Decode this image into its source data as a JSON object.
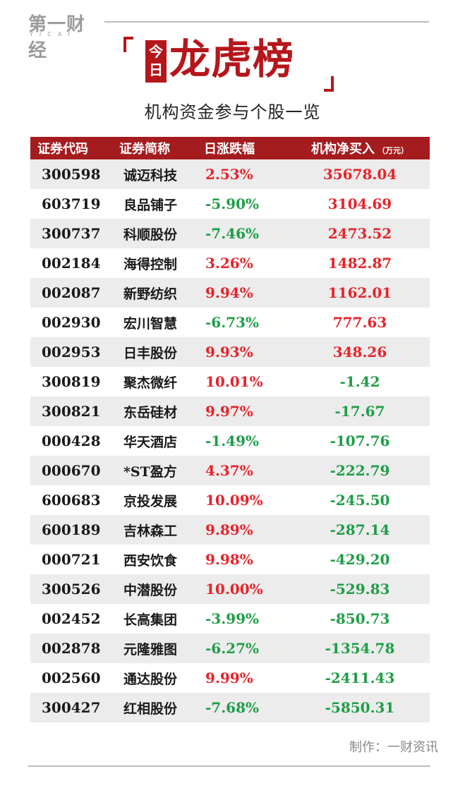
{
  "logo": {
    "main": "第一财经",
    "sub": "YICAI"
  },
  "title": {
    "badge": [
      "今",
      "日"
    ],
    "main": "龙虎榜",
    "subtitle": "机构资金参与个股一览"
  },
  "colors": {
    "accent": "#b5161b",
    "header_bg": "#a51c1f",
    "up": "#e8232a",
    "down": "#1e9e47",
    "stripe": "#ececec"
  },
  "table": {
    "headers": {
      "code": "证券代码",
      "name": "证券简称",
      "change": "日涨跌幅",
      "net": "机构净买入",
      "unit": "（万元）"
    },
    "rows": [
      {
        "code": "300598",
        "name": "诚迈科技",
        "change": "2.53%",
        "net": "35678.04",
        "change_dir": "up",
        "net_dir": "up"
      },
      {
        "code": "603719",
        "name": "良品铺子",
        "change": "-5.90%",
        "net": "3104.69",
        "change_dir": "down",
        "net_dir": "up"
      },
      {
        "code": "300737",
        "name": "科顺股份",
        "change": "-7.46%",
        "net": "2473.52",
        "change_dir": "down",
        "net_dir": "up"
      },
      {
        "code": "002184",
        "name": "海得控制",
        "change": "3.26%",
        "net": "1482.87",
        "change_dir": "up",
        "net_dir": "up"
      },
      {
        "code": "002087",
        "name": "新野纺织",
        "change": "9.94%",
        "net": "1162.01",
        "change_dir": "up",
        "net_dir": "up"
      },
      {
        "code": "002930",
        "name": "宏川智慧",
        "change": "-6.73%",
        "net": "777.63",
        "change_dir": "down",
        "net_dir": "up"
      },
      {
        "code": "002953",
        "name": "日丰股份",
        "change": "9.93%",
        "net": "348.26",
        "change_dir": "up",
        "net_dir": "up"
      },
      {
        "code": "300819",
        "name": "聚杰微纤",
        "change": "10.01%",
        "net": "-1.42",
        "change_dir": "up",
        "net_dir": "down"
      },
      {
        "code": "300821",
        "name": "东岳硅材",
        "change": "9.97%",
        "net": "-17.67",
        "change_dir": "up",
        "net_dir": "down"
      },
      {
        "code": "000428",
        "name": "华天酒店",
        "change": "-1.49%",
        "net": "-107.76",
        "change_dir": "down",
        "net_dir": "down"
      },
      {
        "code": "000670",
        "name": "*ST盈方",
        "change": "4.37%",
        "net": "-222.79",
        "change_dir": "up",
        "net_dir": "down"
      },
      {
        "code": "600683",
        "name": "京投发展",
        "change": "10.09%",
        "net": "-245.50",
        "change_dir": "up",
        "net_dir": "down"
      },
      {
        "code": "600189",
        "name": "吉林森工",
        "change": "9.89%",
        "net": "-287.14",
        "change_dir": "up",
        "net_dir": "down"
      },
      {
        "code": "000721",
        "name": "西安饮食",
        "change": "9.98%",
        "net": "-429.20",
        "change_dir": "up",
        "net_dir": "down"
      },
      {
        "code": "300526",
        "name": "中潜股份",
        "change": "10.00%",
        "net": "-529.83",
        "change_dir": "up",
        "net_dir": "down"
      },
      {
        "code": "002452",
        "name": "长高集团",
        "change": "-3.99%",
        "net": "-850.73",
        "change_dir": "down",
        "net_dir": "down"
      },
      {
        "code": "002878",
        "name": "元隆雅图",
        "change": "-6.27%",
        "net": "-1354.78",
        "change_dir": "down",
        "net_dir": "down"
      },
      {
        "code": "002560",
        "name": "通达股份",
        "change": "9.99%",
        "net": "-2411.43",
        "change_dir": "up",
        "net_dir": "down"
      },
      {
        "code": "300427",
        "name": "红相股份",
        "change": "-7.68%",
        "net": "-5850.31",
        "change_dir": "down",
        "net_dir": "down"
      }
    ]
  },
  "footer": {
    "credit": "制作：一财资讯"
  }
}
